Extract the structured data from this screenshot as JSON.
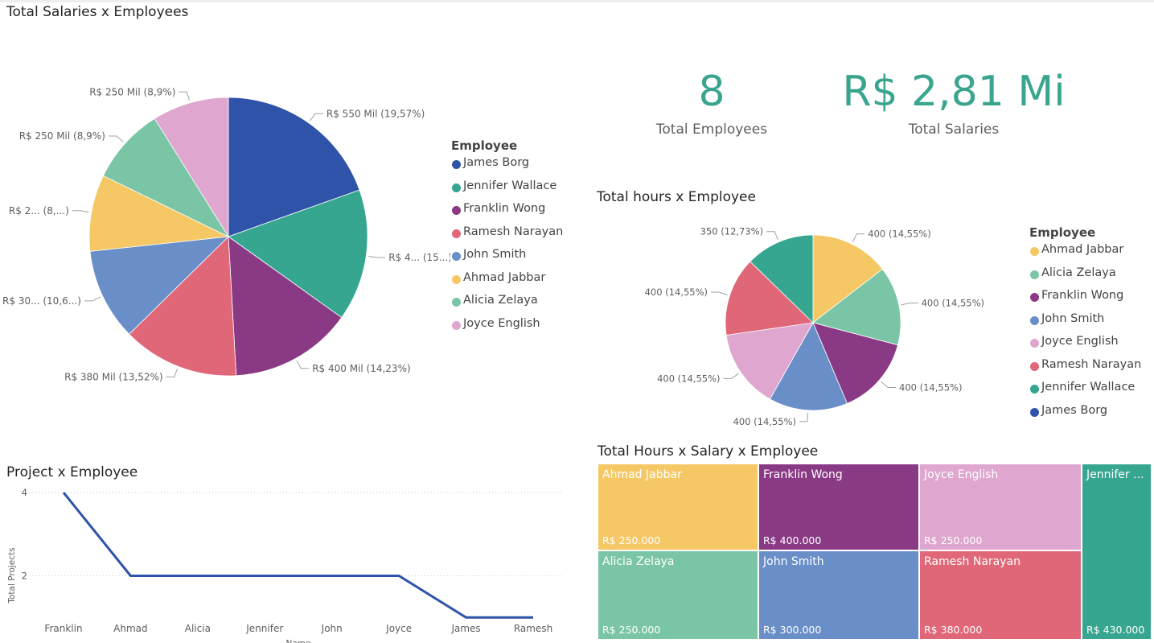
{
  "salaries_pie": {
    "title": "Total Salaries x Employees",
    "legend_title": "Employee",
    "legend": [
      {
        "label": "James Borg",
        "color": "#2f53a8"
      },
      {
        "label": "Jennifer Wallace",
        "color": "#36a690"
      },
      {
        "label": "Franklin Wong",
        "color": "#8a3a85"
      },
      {
        "label": "Ramesh Narayan",
        "color": "#df6778"
      },
      {
        "label": "John Smith",
        "color": "#6a8fc8"
      },
      {
        "label": "Ahmad Jabbar",
        "color": "#f5c865"
      },
      {
        "label": "Alicia Zelaya",
        "color": "#79c5a6"
      },
      {
        "label": "Joyce English",
        "color": "#dfa6cf"
      }
    ]
  },
  "hours_pie": {
    "title": "Total hours x Employee",
    "legend_title": "Employee",
    "legend": [
      {
        "label": "Ahmad Jabbar",
        "color": "#f5c865"
      },
      {
        "label": "Alicia Zelaya",
        "color": "#79c5a6"
      },
      {
        "label": "Franklin Wong",
        "color": "#8a3a85"
      },
      {
        "label": "John Smith",
        "color": "#6a8fc8"
      },
      {
        "label": "Joyce English",
        "color": "#dfa6cf"
      },
      {
        "label": "Ramesh Narayan",
        "color": "#df6778"
      },
      {
        "label": "Jennifer Wallace",
        "color": "#36a690"
      },
      {
        "label": "James Borg",
        "color": "#2f53a8"
      }
    ]
  },
  "kpis": {
    "employees_value": "8",
    "employees_label": "Total Employees",
    "salaries_value": "R$ 2,81 Mi",
    "salaries_label": "Total Salaries"
  },
  "project_chart": {
    "title": "Project x Employee"
  },
  "treemap": {
    "title": "Total Hours x Salary x Employee",
    "cells": [
      {
        "name": "Ahmad Jabbar",
        "value_label": "R$ 250.000",
        "color": "#f5c865"
      },
      {
        "name": "Franklin Wong",
        "value_label": "R$ 400.000",
        "color": "#8a3a85"
      },
      {
        "name": "Joyce English",
        "value_label": "R$ 250.000",
        "color": "#dfa6cf"
      },
      {
        "name": "Jennifer ...",
        "value_label": "R$ 430.000",
        "color": "#36a690"
      },
      {
        "name": "Alicia Zelaya",
        "value_label": "R$ 250.000",
        "color": "#79c5a6"
      },
      {
        "name": "John Smith",
        "value_label": "R$ 300.000",
        "color": "#6a8fc8"
      },
      {
        "name": "Ramesh Narayan",
        "value_label": "R$ 380.000",
        "color": "#df6778"
      }
    ]
  },
  "chart_data": [
    {
      "type": "pie",
      "title": "Total Salaries x Employees",
      "legend_title": "Employee",
      "legend_position": "right",
      "slices": [
        {
          "label": "James Borg",
          "value": 550000,
          "data_label": "R$ 550 Mil (19,57%)",
          "color": "#2f53a8"
        },
        {
          "label": "Jennifer Wallace",
          "value": 430000,
          "data_label": "R$ 4... (15...)",
          "color": "#36a690"
        },
        {
          "label": "Franklin Wong",
          "value": 400000,
          "data_label": "R$ 400 Mil (14,23%)",
          "color": "#8a3a85"
        },
        {
          "label": "Ramesh Narayan",
          "value": 380000,
          "data_label": "R$ 380 Mil (13,52%)",
          "color": "#df6778"
        },
        {
          "label": "John Smith",
          "value": 300000,
          "data_label": "R$ 30... (10,6...)",
          "color": "#6a8fc8"
        },
        {
          "label": "Ahmad Jabbar",
          "value": 250000,
          "data_label": "R$ 2... (8,...)",
          "color": "#f5c865"
        },
        {
          "label": "Alicia Zelaya",
          "value": 250000,
          "data_label": "R$ 250 Mil (8,9%)",
          "color": "#79c5a6"
        },
        {
          "label": "Joyce English",
          "value": 250000,
          "data_label": "R$ 250 Mil (8,9%)",
          "color": "#dfa6cf"
        }
      ]
    },
    {
      "type": "pie",
      "title": "Total hours x Employee",
      "legend_title": "Employee",
      "legend_position": "right",
      "slices": [
        {
          "label": "Ahmad Jabbar",
          "value": 400,
          "data_label": "400 (14,55%)",
          "color": "#f5c865"
        },
        {
          "label": "Alicia Zelaya",
          "value": 400,
          "data_label": "400 (14,55%)",
          "color": "#79c5a6"
        },
        {
          "label": "Franklin Wong",
          "value": 400,
          "data_label": "400 (14,55%)",
          "color": "#8a3a85"
        },
        {
          "label": "John Smith",
          "value": 400,
          "data_label": "400 (14,55%)",
          "color": "#6a8fc8"
        },
        {
          "label": "Joyce English",
          "value": 400,
          "data_label": "400 (14,55%)",
          "color": "#dfa6cf"
        },
        {
          "label": "Ramesh Narayan",
          "value": 400,
          "data_label": "400 (14,55%)",
          "color": "#df6778"
        },
        {
          "label": "Jennifer Wallace",
          "value": 350,
          "data_label": "350 (12,73%)",
          "color": "#36a690"
        }
      ]
    },
    {
      "type": "line",
      "title": "Project x Employee",
      "xlabel": "Name",
      "ylabel": "Total Projects",
      "categories": [
        "Franklin",
        "Ahmad",
        "Alicia",
        "Jennifer",
        "John",
        "Joyce",
        "James",
        "Ramesh"
      ],
      "values": [
        4,
        2,
        2,
        2,
        2,
        2,
        1,
        1
      ],
      "ylim": [
        0,
        4
      ],
      "y_ticks": [
        2,
        4
      ],
      "grid": true,
      "color": "#2f53a8"
    },
    {
      "type": "treemap",
      "title": "Total Hours x Salary x Employee",
      "cells": [
        {
          "label": "Ahmad Jabbar",
          "value": 250000
        },
        {
          "label": "Franklin Wong",
          "value": 400000
        },
        {
          "label": "Joyce English",
          "value": 250000
        },
        {
          "label": "Jennifer Wallace",
          "value": 430000
        },
        {
          "label": "Alicia Zelaya",
          "value": 250000
        },
        {
          "label": "John Smith",
          "value": 300000
        },
        {
          "label": "Ramesh Narayan",
          "value": 380000
        }
      ]
    }
  ]
}
